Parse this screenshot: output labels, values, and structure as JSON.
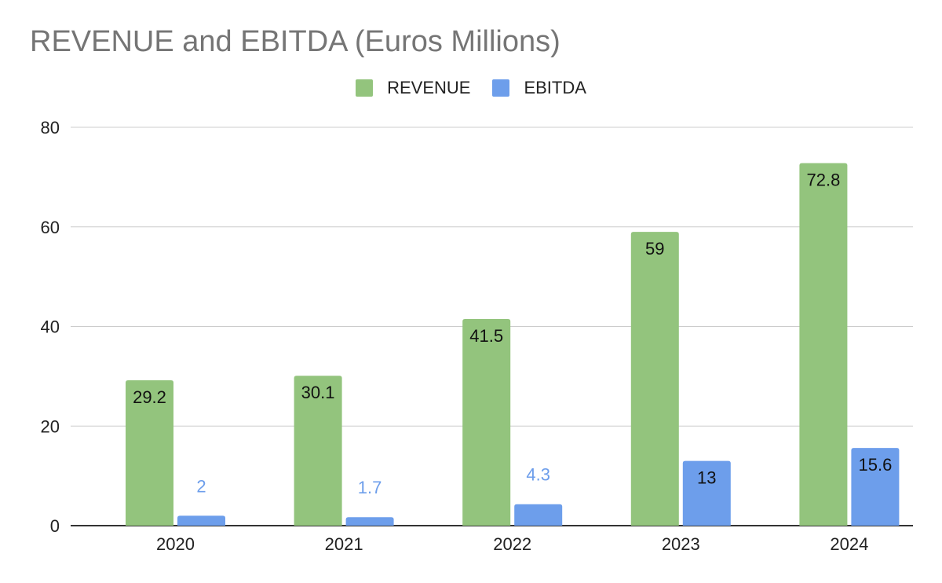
{
  "chart_data": {
    "type": "bar",
    "title": "REVENUE and EBITDA (Euros Millions)",
    "categories": [
      "2020",
      "2021",
      "2022",
      "2023",
      "2024"
    ],
    "series": [
      {
        "name": "REVENUE",
        "values": [
          29.2,
          30.1,
          41.5,
          59,
          72.8
        ],
        "color": "#93c47d",
        "labels": [
          "29.2",
          "30.1",
          "41.5",
          "59",
          "72.8"
        ]
      },
      {
        "name": "EBITDA",
        "values": [
          2,
          1.7,
          4.3,
          13,
          15.6
        ],
        "color": "#6d9eeb",
        "labels": [
          "2",
          "1.7",
          "4.3",
          "13",
          "15.6"
        ]
      }
    ],
    "ylim": [
      0,
      80
    ],
    "yticks": [
      "0",
      "20",
      "40",
      "60",
      "80"
    ],
    "grid": true,
    "legend": "top-center",
    "xlabel": "",
    "ylabel": ""
  }
}
